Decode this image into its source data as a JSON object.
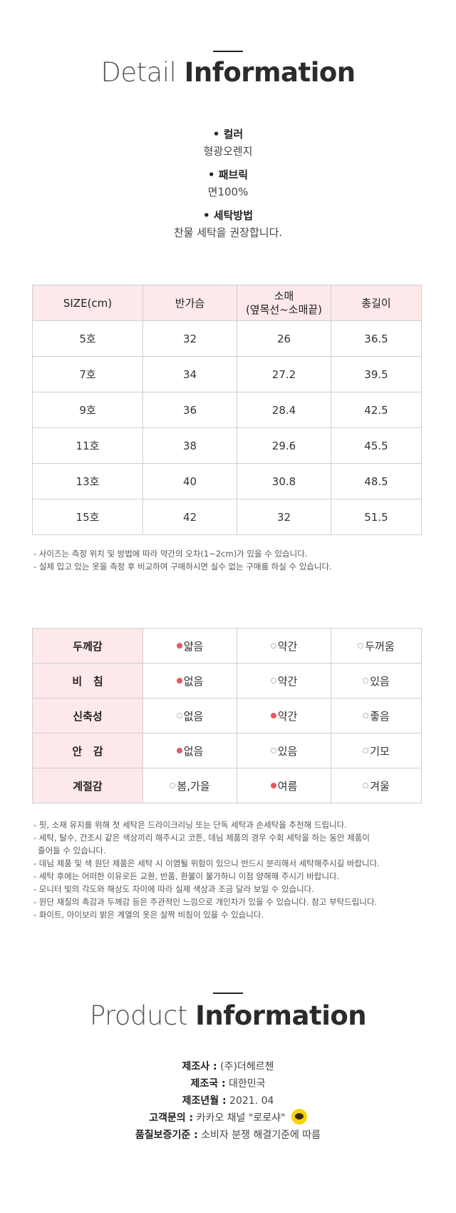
{
  "detail": {
    "title_light": "Detail",
    "title_bold": "Information",
    "specs": [
      {
        "label": "• 컬러",
        "value": "형광오렌지"
      },
      {
        "label": "• 패브릭",
        "value": "면100%"
      },
      {
        "label": "• 세탁방법",
        "value": "찬물 세탁을 권장합니다."
      }
    ]
  },
  "size_table": {
    "headers": [
      "SIZE(cm)",
      "반가슴",
      "소매\n(옆목선~소매끝)",
      "총길이"
    ],
    "rows": [
      [
        "5호",
        "32",
        "26",
        "36.5"
      ],
      [
        "7호",
        "34",
        "27.2",
        "39.5"
      ],
      [
        "9호",
        "36",
        "28.4",
        "42.5"
      ],
      [
        "11호",
        "38",
        "29.6",
        "45.5"
      ],
      [
        "13호",
        "40",
        "30.8",
        "48.5"
      ],
      [
        "15호",
        "42",
        "32",
        "51.5"
      ]
    ]
  },
  "size_notes": [
    "- 사이즈는 측정 위치 및 방법에 따라 약간의 오차(1~2cm)가 있을 수 있습니다.",
    "- 실제 입고 있는 옷을 측정 후 비교하여 구매하시면 실수 없는 구매를 하실 수 있습니다."
  ],
  "fit_table": {
    "accent": "#e8575f",
    "rows": [
      {
        "label": "두께감",
        "options": [
          "얇음",
          "약간",
          "두꺼움"
        ],
        "selected": 0
      },
      {
        "label": "비   침",
        "options": [
          "없음",
          "약간",
          "있음"
        ],
        "selected": 0
      },
      {
        "label": "신축성",
        "options": [
          "없음",
          "약간",
          "좋음"
        ],
        "selected": 1
      },
      {
        "label": "안   감",
        "options": [
          "없음",
          "있음",
          "기모"
        ],
        "selected": 0
      },
      {
        "label": "계절감",
        "options": [
          "봄,가을",
          "여름",
          "겨울"
        ],
        "selected": 1
      }
    ]
  },
  "care_notes": [
    "- 핏, 소재 유지를 위해 첫 세탁은 드라이크리닝 또는 단독 세탁과 손세탁을 추천해 드립니다.",
    "- 세탁, 탈수, 건조시 같은 색상끼리 해주시고 코튼, 데님 제품의 경우 수회 세탁을 하는 동안 제품이",
    "  줄어들 수 있습니다.",
    "- 데님 제품 및 색 원단 제품은 세탁 시 이염될 위험이 있으니 반드시 분리해서 세탁해주시길 바랍니다.",
    "- 세탁 후에는 어떠한 이유로든 교환, 반품, 환불이 불가하니 이점 양해해 주시기 바랍니다.",
    "- 모니터 빛의 각도와 해상도 차이에 따라 실제 색상과 조금 달라 보일 수 있습니다.",
    "- 원단 재질의 촉감과 두께감 등은 주관적인 느낌으로 개인차가 있을 수 있습니다. 참고 부탁드립니다.",
    "- 화이트, 아이보리 밝은 계열의 옷은 살짝 비침이 있을 수 있습니다."
  ],
  "product": {
    "title_light": "Product",
    "title_bold": "Information",
    "rows": [
      {
        "key": "제조사 :",
        "value": " (주)더헤르첸"
      },
      {
        "key": "제조국 :",
        "value": " 대한민국"
      },
      {
        "key": "제조년월 :",
        "value": " 2021. 04"
      },
      {
        "key": "고객문의 :",
        "value": " 카카오 채널 \"로로샤\""
      },
      {
        "key": "품질보증기준 :",
        "value": " 소비자 분쟁 해결기준에 따름"
      }
    ]
  }
}
